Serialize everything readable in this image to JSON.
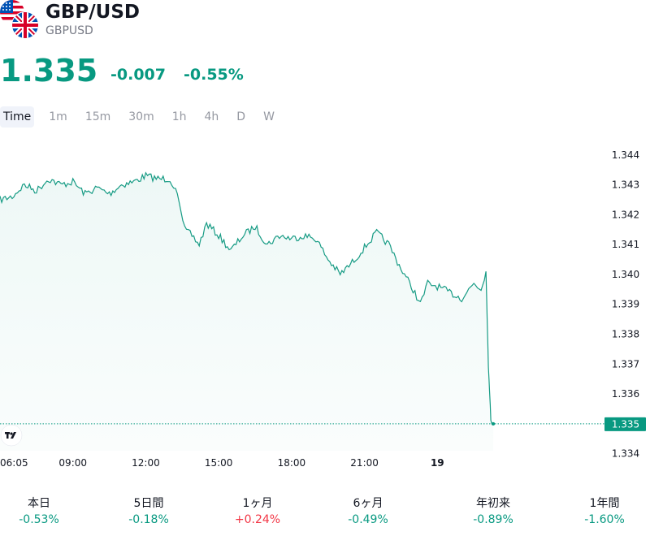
{
  "symbol": {
    "title": "GBP/USD",
    "ticker": "GBPUSD",
    "icon": "gbp-usd-flags-icon"
  },
  "quote": {
    "price": "1.335",
    "change": "-0.007",
    "change_pct": "-0.55%"
  },
  "colors": {
    "up": "#089981",
    "down": "#f23645",
    "line": "#169b84",
    "text": "#131722",
    "muted": "#787b86"
  },
  "timeframes": [
    {
      "label": "Time",
      "active": true
    },
    {
      "label": "1m"
    },
    {
      "label": "15m"
    },
    {
      "label": "30m"
    },
    {
      "label": "1h"
    },
    {
      "label": "4h"
    },
    {
      "label": "D"
    },
    {
      "label": "W"
    }
  ],
  "chart_data": {
    "type": "area",
    "title": "",
    "xlabel": "",
    "ylabel": "",
    "ylim": [
      1.3341,
      1.3447
    ],
    "yticks": [
      "1.344",
      "1.343",
      "1.342",
      "1.341",
      "1.340",
      "1.339",
      "1.338",
      "1.337",
      "1.336",
      "1.335",
      "1.334"
    ],
    "xticks": [
      {
        "label": "06:05",
        "hour": 0
      },
      {
        "label": "09:00",
        "hour": 3
      },
      {
        "label": "12:00",
        "hour": 6
      },
      {
        "label": "15:00",
        "hour": 9
      },
      {
        "label": "18:00",
        "hour": 12
      },
      {
        "label": "21:00",
        "hour": 15
      },
      {
        "label": "19",
        "hour": 18,
        "bold": true
      }
    ],
    "xlim_hours": [
      0,
      26.75
    ],
    "x_hours": [
      0,
      0.5,
      1,
      1.5,
      2,
      2.5,
      3,
      3.5,
      4,
      4.5,
      5,
      5.5,
      6,
      6.5,
      7,
      7.3,
      7.6,
      7.9,
      8.2,
      8.5,
      9,
      9.5,
      10,
      10.5,
      11,
      11.5,
      12,
      12.5,
      13,
      13.5,
      14,
      14.5,
      15,
      15.5,
      16,
      16.5,
      17,
      17.3,
      17.6,
      18,
      18.5,
      19,
      19.5,
      19.8,
      20,
      20.1,
      20.2,
      20.3
    ],
    "values": [
      1.3425,
      1.3426,
      1.343,
      1.3428,
      1.3432,
      1.343,
      1.3431,
      1.3427,
      1.3429,
      1.3427,
      1.343,
      1.3431,
      1.3433,
      1.3432,
      1.3432,
      1.3427,
      1.3415,
      1.3413,
      1.341,
      1.3417,
      1.3413,
      1.3408,
      1.3413,
      1.3416,
      1.341,
      1.3413,
      1.3412,
      1.3413,
      1.3412,
      1.3405,
      1.34,
      1.3404,
      1.3409,
      1.3414,
      1.341,
      1.3402,
      1.3395,
      1.339,
      1.3397,
      1.3396,
      1.3394,
      1.3392,
      1.3397,
      1.3395,
      1.3401,
      1.3369,
      1.3352,
      1.335
    ],
    "last_price": "1.335",
    "last_value": 1.335
  },
  "performance": [
    {
      "label": "本日",
      "value": "-0.53%",
      "direction": "down"
    },
    {
      "label": "5日間",
      "value": "-0.18%",
      "direction": "down"
    },
    {
      "label": "1ヶ月",
      "value": "+0.24%",
      "direction": "up"
    },
    {
      "label": "6ヶ月",
      "value": "-0.49%",
      "direction": "down"
    },
    {
      "label": "年初来",
      "value": "-0.89%",
      "direction": "down"
    },
    {
      "label": "1年間",
      "value": "-1.60%",
      "direction": "down"
    }
  ],
  "branding": {
    "logo_icon": "tradingview-logo-icon"
  }
}
